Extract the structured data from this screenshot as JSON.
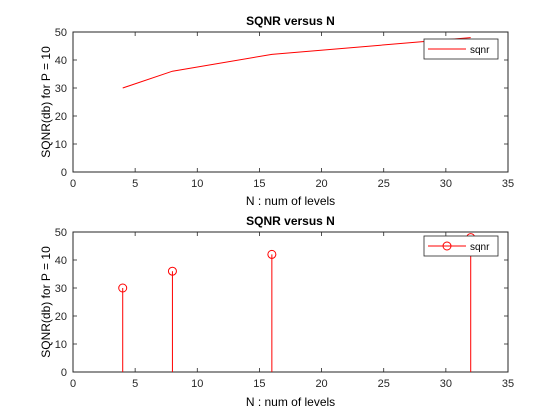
{
  "chart_data": [
    {
      "type": "line",
      "title": "SQNR versus N",
      "xlabel": "N : num of levels",
      "ylabel": "SQNR(db) for P = 10",
      "xlim": [
        0,
        35
      ],
      "ylim": [
        0,
        50
      ],
      "xticks": [
        0,
        5,
        10,
        15,
        20,
        25,
        30,
        35
      ],
      "yticks": [
        0,
        10,
        20,
        30,
        40,
        50
      ],
      "grid": false,
      "legend_position": "top-right",
      "x": [
        4,
        8,
        16,
        32
      ],
      "series": [
        {
          "name": "sqnr",
          "values": [
            30,
            36,
            42,
            48
          ],
          "color": "#ff0000"
        }
      ]
    },
    {
      "type": "stem",
      "title": "SQNR versus N",
      "xlabel": "N : num of levels",
      "ylabel": "SQNR(db) for P = 10",
      "xlim": [
        0,
        35
      ],
      "ylim": [
        0,
        50
      ],
      "xticks": [
        0,
        5,
        10,
        15,
        20,
        25,
        30,
        35
      ],
      "yticks": [
        0,
        10,
        20,
        30,
        40,
        50
      ],
      "grid": false,
      "legend_position": "top-right",
      "x": [
        4,
        8,
        16,
        32
      ],
      "series": [
        {
          "name": "sqnr",
          "values": [
            30,
            36,
            42,
            48
          ],
          "color": "#ff0000"
        }
      ]
    }
  ]
}
